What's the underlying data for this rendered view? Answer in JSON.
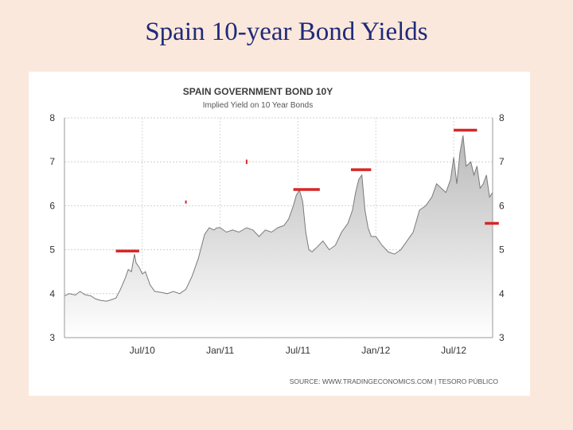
{
  "slide": {
    "title": "Spain 10-year Bond Yields"
  },
  "colors": {
    "background": "#fbe8dc",
    "title": "#1f2a78",
    "marker": "#d62728",
    "line": "#7a7a7a"
  },
  "chart_data": {
    "type": "area",
    "title": "SPAIN GOVERNMENT BOND 10Y",
    "subtitle": "Implied Yield on 10 Year Bonds",
    "source": "SOURCE: WWW.TRADINGECONOMICS.COM | TESORO PÚBLICO",
    "ylim": [
      3,
      8
    ],
    "y_ticks": [
      3,
      4,
      5,
      6,
      7,
      8
    ],
    "x_range": [
      2010.0,
      2012.75
    ],
    "x_ticks": [
      {
        "label": "Jul/10",
        "value": 2010.5
      },
      {
        "label": "Jan/11",
        "value": 2011.0
      },
      {
        "label": "Jul/11",
        "value": 2011.5
      },
      {
        "label": "Jan/12",
        "value": 2012.0
      },
      {
        "label": "Jul/12",
        "value": 2012.5
      }
    ],
    "series": [
      {
        "name": "Implied Yield on 10 Year Bonds",
        "x": [
          2010.0,
          2010.03,
          2010.07,
          2010.1,
          2010.13,
          2010.17,
          2010.2,
          2010.23,
          2010.27,
          2010.3,
          2010.33,
          2010.36,
          2010.39,
          2010.41,
          2010.43,
          2010.45,
          2010.46,
          2010.48,
          2010.5,
          2010.52,
          2010.55,
          2010.58,
          2010.62,
          2010.66,
          2010.7,
          2010.74,
          2010.78,
          2010.82,
          2010.86,
          2010.9,
          2010.93,
          2010.96,
          2010.98,
          2011.0,
          2011.04,
          2011.08,
          2011.12,
          2011.17,
          2011.21,
          2011.25,
          2011.29,
          2011.33,
          2011.37,
          2011.41,
          2011.44,
          2011.47,
          2011.49,
          2011.51,
          2011.53,
          2011.55,
          2011.57,
          2011.59,
          2011.62,
          2011.66,
          2011.7,
          2011.74,
          2011.78,
          2011.82,
          2011.85,
          2011.87,
          2011.89,
          2011.91,
          2011.93,
          2011.95,
          2011.97,
          2012.0,
          2012.04,
          2012.08,
          2012.12,
          2012.16,
          2012.2,
          2012.24,
          2012.28,
          2012.32,
          2012.36,
          2012.39,
          2012.42,
          2012.45,
          2012.48,
          2012.5,
          2012.52,
          2012.54,
          2012.56,
          2012.58,
          2012.61,
          2012.63,
          2012.65,
          2012.67,
          2012.69,
          2012.71,
          2012.73,
          2012.75
        ],
        "values": [
          3.95,
          4.0,
          3.97,
          4.05,
          3.98,
          3.95,
          3.88,
          3.85,
          3.83,
          3.86,
          3.9,
          4.1,
          4.35,
          4.55,
          4.5,
          4.9,
          4.7,
          4.6,
          4.45,
          4.5,
          4.2,
          4.05,
          4.03,
          4.0,
          4.05,
          4.0,
          4.1,
          4.4,
          4.8,
          5.35,
          5.5,
          5.45,
          5.5,
          5.5,
          5.4,
          5.45,
          5.4,
          5.5,
          5.45,
          5.3,
          5.45,
          5.4,
          5.5,
          5.55,
          5.7,
          6.0,
          6.25,
          6.35,
          6.1,
          5.4,
          5.0,
          4.95,
          5.05,
          5.2,
          5.0,
          5.1,
          5.4,
          5.6,
          5.9,
          6.3,
          6.6,
          6.7,
          5.9,
          5.5,
          5.3,
          5.3,
          5.1,
          4.95,
          4.9,
          5.0,
          5.2,
          5.4,
          5.9,
          6.0,
          6.2,
          6.5,
          6.4,
          6.3,
          6.6,
          7.1,
          6.5,
          7.2,
          7.6,
          6.9,
          7.0,
          6.7,
          6.9,
          6.4,
          6.5,
          6.7,
          6.2,
          6.3
        ]
      }
    ],
    "markers": [
      {
        "type": "bar",
        "x_start": 2010.33,
        "x_end": 2010.48,
        "y": 4.97
      },
      {
        "type": "tick",
        "x": 2010.78,
        "y_bottom": 6.05,
        "y_top": 6.12
      },
      {
        "type": "tick",
        "x": 2011.17,
        "y_bottom": 6.95,
        "y_top": 7.05
      },
      {
        "type": "bar",
        "x_start": 2011.47,
        "x_end": 2011.64,
        "y": 6.37
      },
      {
        "type": "bar",
        "x_start": 2011.84,
        "x_end": 2011.97,
        "y": 6.82
      },
      {
        "type": "bar",
        "x_start": 2012.5,
        "x_end": 2012.65,
        "y": 7.72
      },
      {
        "type": "bar",
        "x_start": 2012.7,
        "x_end": 2012.79,
        "y": 5.6
      }
    ]
  }
}
